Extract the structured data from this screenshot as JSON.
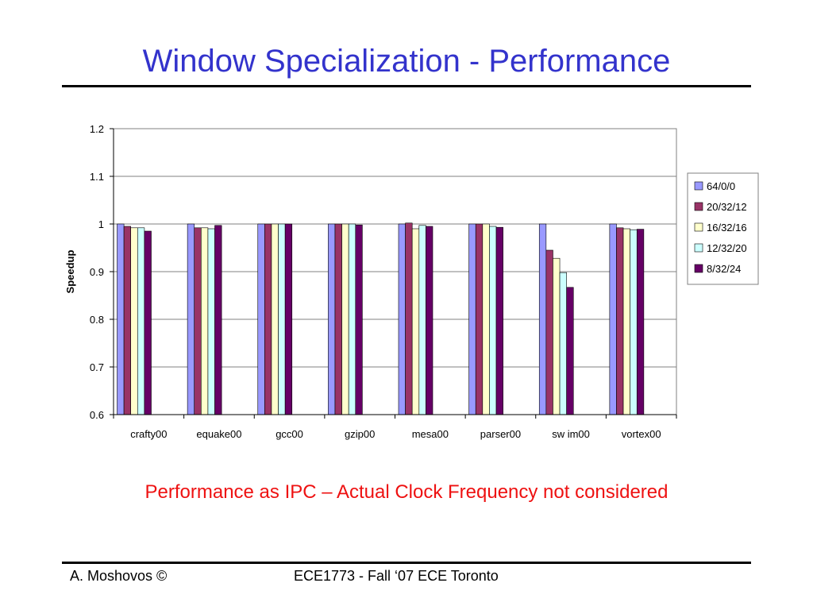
{
  "slide": {
    "title": "Window Specialization - Performance",
    "subtitle": "Performance as IPC – Actual Clock Frequency not considered",
    "footer_left": "A. Moshovos ©",
    "footer_center": "ECE1773 - Fall ‘07 ECE Toronto",
    "title_color": "#3333cc",
    "subtitle_color": "#ee1111"
  },
  "chart_data": {
    "type": "bar",
    "title": "",
    "xlabel": "",
    "ylabel": "Speedup",
    "ylim": [
      0.6,
      1.2
    ],
    "yticks": [
      "0.6",
      "0.7",
      "0.8",
      "0.9",
      "1",
      "1.1",
      "1.2"
    ],
    "grid": "horizontal",
    "legend_position": "right",
    "categories": [
      "crafty00",
      "equake00",
      "gcc00",
      "gzip00",
      "mesa00",
      "parser00",
      "sw im00",
      "vortex00"
    ],
    "series": [
      {
        "name": "64/0/0",
        "color": "#9999ff",
        "values": [
          1.0,
          1.0,
          1.0,
          1.0,
          1.0,
          1.0,
          1.0,
          1.0
        ]
      },
      {
        "name": "20/32/12",
        "color": "#993366",
        "values": [
          0.995,
          0.992,
          1.0,
          1.0,
          1.002,
          1.0,
          0.945,
          0.992
        ]
      },
      {
        "name": "16/32/16",
        "color": "#ffffcc",
        "values": [
          0.992,
          0.992,
          1.0,
          1.0,
          0.99,
          1.0,
          0.928,
          0.99
        ]
      },
      {
        "name": "12/32/20",
        "color": "#ccffff",
        "values": [
          0.992,
          0.99,
          1.0,
          1.0,
          0.997,
          0.995,
          0.898,
          0.988
        ]
      },
      {
        "name": "8/32/24",
        "color": "#660066",
        "values": [
          0.985,
          0.997,
          1.0,
          0.998,
          0.995,
          0.993,
          0.867,
          0.989
        ]
      }
    ]
  }
}
